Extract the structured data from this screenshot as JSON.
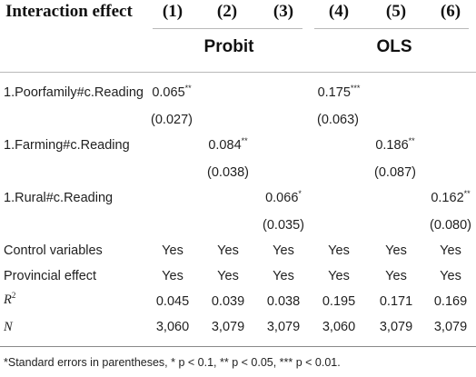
{
  "table": {
    "header": {
      "label": "Interaction effect",
      "columns": [
        "(1)",
        "(2)",
        "(3)",
        "(4)",
        "(5)",
        "(6)"
      ],
      "groups": [
        "Probit",
        "OLS"
      ]
    },
    "rows": [
      {
        "label": "1.Poorfamily#c.Reading",
        "coef": [
          "0.065**",
          "",
          "",
          "0.175***",
          "",
          ""
        ],
        "se": [
          "(0.027)",
          "",
          "",
          "(0.063)",
          "",
          ""
        ]
      },
      {
        "label": "1.Farming#c.Reading",
        "coef": [
          "",
          "0.084**",
          "",
          "",
          "0.186**",
          ""
        ],
        "se": [
          "",
          "(0.038)",
          "",
          "",
          "(0.087)",
          ""
        ]
      },
      {
        "label": "1.Rural#c.Reading",
        "coef": [
          "",
          "",
          "0.066*",
          "",
          "",
          "0.162**"
        ],
        "se": [
          "",
          "",
          "(0.035)",
          "",
          "",
          "(0.080)"
        ]
      }
    ],
    "summary": [
      {
        "label": "Control variables",
        "values": [
          "Yes",
          "Yes",
          "Yes",
          "Yes",
          "Yes",
          "Yes"
        ]
      },
      {
        "label": "Provincial effect",
        "values": [
          "Yes",
          "Yes",
          "Yes",
          "Yes",
          "Yes",
          "Yes"
        ]
      },
      {
        "label": "R2",
        "values": [
          "0.045",
          "0.039",
          "0.038",
          "0.195",
          "0.171",
          "0.169"
        ]
      },
      {
        "label": "N",
        "values": [
          "3,060",
          "3,079",
          "3,079",
          "3,060",
          "3,079",
          "3,079"
        ]
      }
    ],
    "note": "*Standard errors in parentheses, * p < 0.1, ** p < 0.05, *** p < 0.01."
  }
}
